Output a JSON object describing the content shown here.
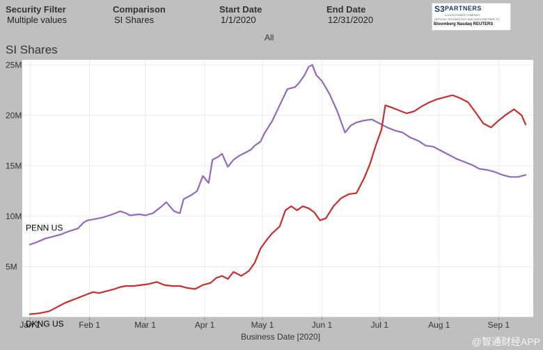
{
  "filters": [
    {
      "label": "Security Filter",
      "value": "Multiple values"
    },
    {
      "label": "Comparison",
      "value": "SI Shares"
    },
    {
      "label": "Start Date",
      "value": "1/1/2020"
    },
    {
      "label": "End Date",
      "value": "12/31/2020"
    }
  ],
  "logo": {
    "mark": "S3",
    "name": "PARTNERS",
    "tagline": "A DATA POWER COMPANY",
    "partner_line": "OFFICIAL TECHNOLOGY AND DATA PARTNER TO",
    "brands": "Bloomberg  Nasdaq  REUTERS"
  },
  "selector": "All",
  "panel_title": "SI Shares",
  "watermark": "@智通财经APP",
  "colors": {
    "penn": "#9467bd",
    "dkng": "#cc2b2b",
    "grid": "#ececec",
    "axis": "#bfbfbf"
  },
  "chart_data": {
    "type": "line",
    "title": "SI Shares",
    "xlabel": "Business Date [2020]",
    "ylabel": "",
    "ylim": [
      0,
      25.5
    ],
    "xlim": [
      -4,
      262
    ],
    "y_ticks": [
      5,
      10,
      15,
      20,
      25
    ],
    "y_tick_labels": [
      "5M",
      "10M",
      "15M",
      "20M",
      "25M"
    ],
    "x_ticks": [
      0,
      31,
      60,
      91,
      121,
      152,
      182,
      213,
      244
    ],
    "x_tick_labels": [
      "Jan 1",
      "Feb 1",
      "Mar 1",
      "Apr 1",
      "May 1",
      "Jun 1",
      "Jul 1",
      "Aug 1",
      "Sep 1"
    ],
    "grid": true,
    "series": [
      {
        "name": "PENN US",
        "x": [
          0,
          3,
          8,
          12,
          16,
          20,
          25,
          28,
          30,
          33,
          38,
          43,
          47,
          50,
          52,
          57,
          60,
          64,
          68,
          71,
          75,
          78,
          80,
          84,
          87,
          90,
          93,
          95,
          98,
          100,
          103,
          106,
          109,
          112,
          115,
          117,
          120,
          122,
          126,
          130,
          134,
          138,
          140,
          143,
          145,
          147,
          149,
          152,
          156,
          160,
          164,
          167,
          170,
          174,
          178,
          182,
          186,
          190,
          194,
          198,
          202,
          206,
          210,
          214,
          218,
          222,
          226,
          230,
          234,
          238,
          242,
          246,
          250,
          254,
          258
        ],
        "values": [
          7.2,
          7.4,
          7.8,
          8.0,
          8.2,
          8.5,
          8.8,
          9.4,
          9.6,
          9.7,
          9.9,
          10.2,
          10.5,
          10.3,
          10.1,
          10.2,
          10.1,
          10.3,
          10.9,
          11.4,
          10.5,
          10.3,
          11.7,
          12.1,
          12.5,
          14.0,
          13.3,
          15.6,
          15.9,
          16.2,
          14.9,
          15.6,
          16.0,
          16.3,
          16.6,
          17.0,
          17.4,
          18.2,
          19.4,
          21.0,
          22.6,
          22.8,
          23.2,
          24.0,
          24.8,
          25.0,
          24.0,
          23.4,
          22.1,
          20.4,
          18.3,
          19.0,
          19.3,
          19.5,
          19.6,
          19.2,
          18.8,
          18.5,
          18.3,
          17.8,
          17.5,
          17.0,
          16.9,
          16.5,
          16.1,
          15.7,
          15.4,
          15.1,
          14.7,
          14.6,
          14.4,
          14.1,
          13.9,
          13.9,
          14.1
        ]
      },
      {
        "name": "DKNG US",
        "x": [
          0,
          5,
          10,
          14,
          18,
          22,
          26,
          30,
          33,
          36,
          40,
          44,
          47,
          50,
          54,
          58,
          62,
          66,
          70,
          74,
          78,
          82,
          86,
          90,
          94,
          97,
          100,
          103,
          106,
          110,
          114,
          117,
          120,
          123,
          126,
          130,
          133,
          136,
          139,
          142,
          145,
          148,
          151,
          154,
          158,
          162,
          166,
          170,
          174,
          177,
          180,
          183,
          185,
          188,
          192,
          196,
          200,
          204,
          208,
          212,
          216,
          220,
          224,
          228,
          232,
          236,
          240,
          244,
          248,
          252,
          256,
          258
        ],
        "values": [
          0.3,
          0.4,
          0.6,
          1.0,
          1.4,
          1.7,
          2.0,
          2.3,
          2.5,
          2.4,
          2.6,
          2.8,
          3.0,
          3.1,
          3.1,
          3.2,
          3.3,
          3.5,
          3.2,
          3.1,
          3.1,
          2.9,
          2.8,
          3.2,
          3.4,
          3.9,
          4.1,
          3.8,
          4.5,
          4.1,
          4.6,
          5.4,
          6.8,
          7.6,
          8.3,
          9.0,
          10.6,
          11.0,
          10.6,
          11.0,
          10.8,
          10.4,
          9.6,
          9.8,
          11.0,
          11.8,
          12.2,
          12.3,
          13.8,
          15.2,
          17.0,
          18.6,
          21.0,
          20.8,
          20.5,
          20.2,
          20.4,
          20.9,
          21.3,
          21.6,
          21.8,
          22.0,
          21.7,
          21.3,
          20.3,
          19.2,
          18.8,
          19.5,
          20.1,
          20.6,
          20.0,
          19.1
        ]
      }
    ]
  }
}
